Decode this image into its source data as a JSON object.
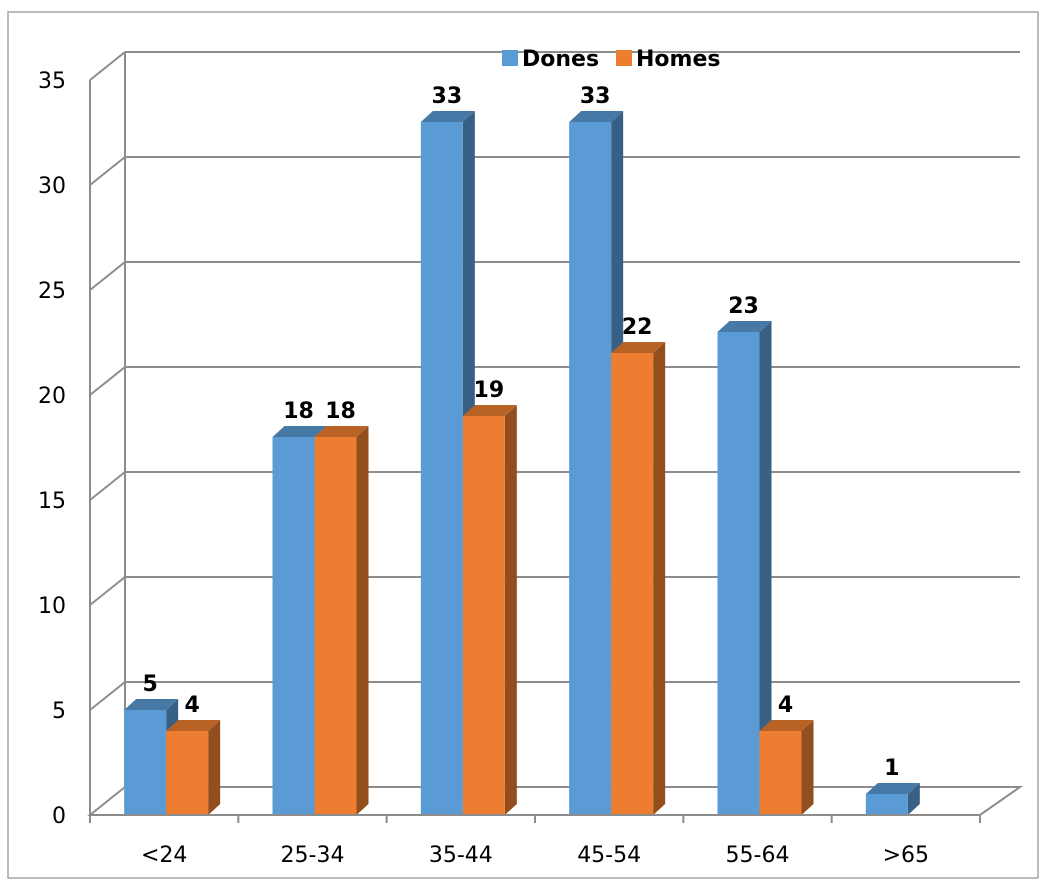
{
  "chart_data": {
    "type": "bar",
    "style": "3d-clustered-column",
    "categories": [
      "<24",
      "25-34",
      "35-44",
      "45-54",
      "55-64",
      ">65"
    ],
    "series": [
      {
        "name": "Dones",
        "values": [
          5,
          18,
          33,
          33,
          23,
          1
        ],
        "color": "#5B9BD5"
      },
      {
        "name": "Homes",
        "values": [
          4,
          18,
          19,
          22,
          4,
          null
        ],
        "color": "#ED7D31"
      }
    ],
    "ylim": [
      0,
      35
    ],
    "yticks": [
      0,
      5,
      10,
      15,
      20,
      25,
      30,
      35
    ],
    "grid": true,
    "legend": "top-center"
  }
}
